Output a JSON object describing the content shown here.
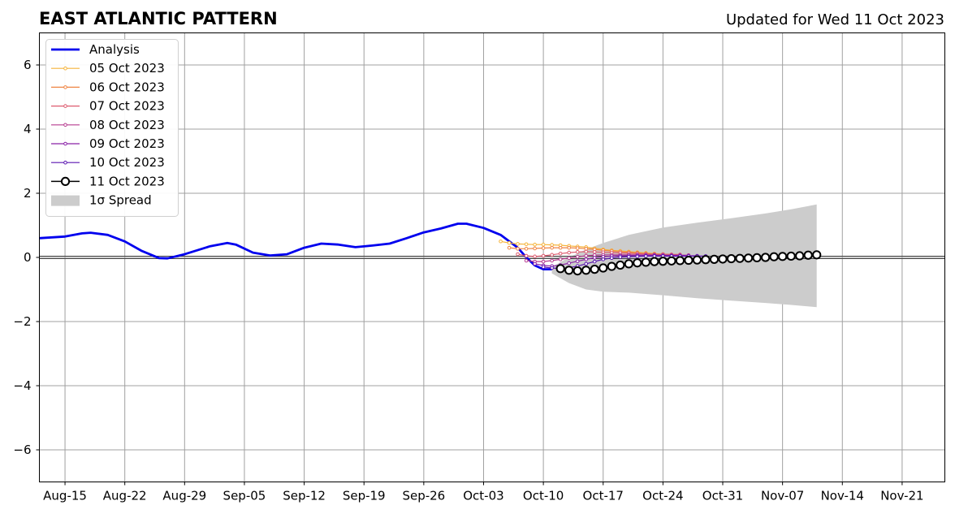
{
  "chart_data": {
    "type": "line",
    "title": "EAST ATLANTIC PATTERN",
    "subtitle": "Updated for Wed 11 Oct 2023",
    "xlabel": "",
    "ylabel": "",
    "x_axis": {
      "type": "date",
      "start": "2023-08-12",
      "end": "2023-11-26",
      "ticks": [
        "Aug-15",
        "Aug-22",
        "Aug-29",
        "Sep-05",
        "Sep-12",
        "Sep-19",
        "Sep-26",
        "Oct-03",
        "Oct-10",
        "Oct-17",
        "Oct-24",
        "Oct-31",
        "Nov-07",
        "Nov-14",
        "Nov-21"
      ],
      "tick_dates": [
        "2023-08-15",
        "2023-08-22",
        "2023-08-29",
        "2023-09-05",
        "2023-09-12",
        "2023-09-19",
        "2023-09-26",
        "2023-10-03",
        "2023-10-10",
        "2023-10-17",
        "2023-10-24",
        "2023-10-31",
        "2023-11-07",
        "2023-11-14",
        "2023-11-21"
      ]
    },
    "ylim": [
      -7,
      7
    ],
    "yticks": [
      -6,
      -4,
      -2,
      0,
      2,
      4,
      6
    ],
    "grid": true,
    "legend_position": "top-left",
    "analysis": {
      "name": "Analysis",
      "color": "#0000ee",
      "points": [
        [
          "2023-08-12",
          0.6
        ],
        [
          "2023-08-15",
          0.65
        ],
        [
          "2023-08-17",
          0.75
        ],
        [
          "2023-08-18",
          0.77
        ],
        [
          "2023-08-20",
          0.7
        ],
        [
          "2023-08-22",
          0.5
        ],
        [
          "2023-08-24",
          0.2
        ],
        [
          "2023-08-26",
          -0.02
        ],
        [
          "2023-08-27",
          -0.03
        ],
        [
          "2023-08-29",
          0.1
        ],
        [
          "2023-09-01",
          0.35
        ],
        [
          "2023-09-03",
          0.45
        ],
        [
          "2023-09-04",
          0.4
        ],
        [
          "2023-09-06",
          0.15
        ],
        [
          "2023-09-08",
          0.06
        ],
        [
          "2023-09-10",
          0.1
        ],
        [
          "2023-09-12",
          0.3
        ],
        [
          "2023-09-14",
          0.43
        ],
        [
          "2023-09-16",
          0.4
        ],
        [
          "2023-09-18",
          0.32
        ],
        [
          "2023-09-20",
          0.37
        ],
        [
          "2023-09-22",
          0.43
        ],
        [
          "2023-09-24",
          0.6
        ],
        [
          "2023-09-26",
          0.78
        ],
        [
          "2023-09-28",
          0.9
        ],
        [
          "2023-09-30",
          1.05
        ],
        [
          "2023-10-01",
          1.05
        ],
        [
          "2023-10-03",
          0.92
        ],
        [
          "2023-10-05",
          0.7
        ],
        [
          "2023-10-07",
          0.3
        ],
        [
          "2023-10-08",
          0.0
        ],
        [
          "2023-10-09",
          -0.25
        ],
        [
          "2023-10-10",
          -0.37
        ],
        [
          "2023-10-11",
          -0.37
        ]
      ]
    },
    "forecasts": [
      {
        "name": "05 Oct 2023",
        "color": "#f5b33a",
        "start": "2023-10-05",
        "values": [
          0.5,
          0.45,
          0.42,
          0.41,
          0.4,
          0.4,
          0.39,
          0.38,
          0.36,
          0.34,
          0.32,
          0.28,
          0.25,
          0.22,
          0.2,
          0.18,
          0.16,
          0.14,
          0.12,
          0.1
        ]
      },
      {
        "name": "06 Oct 2023",
        "color": "#ef8443",
        "start": "2023-10-06",
        "values": [
          0.3,
          0.27,
          0.27,
          0.28,
          0.29,
          0.3,
          0.3,
          0.3,
          0.29,
          0.27,
          0.25,
          0.22,
          0.2,
          0.18,
          0.16,
          0.14,
          0.12,
          0.1,
          0.1,
          0.09
        ]
      },
      {
        "name": "07 Oct 2023",
        "color": "#dd5a6e",
        "start": "2023-10-07",
        "values": [
          0.1,
          0.05,
          0.03,
          0.05,
          0.08,
          0.12,
          0.15,
          0.17,
          0.18,
          0.17,
          0.16,
          0.15,
          0.14,
          0.13,
          0.12,
          0.11,
          0.1,
          0.1,
          0.09,
          0.09
        ]
      },
      {
        "name": "08 Oct 2023",
        "color": "#b63c8f",
        "start": "2023-10-08",
        "values": [
          -0.1,
          -0.13,
          -0.13,
          -0.1,
          -0.06,
          -0.02,
          0.02,
          0.05,
          0.07,
          0.08,
          0.08,
          0.08,
          0.08,
          0.08,
          0.08,
          0.08,
          0.07,
          0.07,
          0.07,
          0.07
        ]
      },
      {
        "name": "09 Oct 2023",
        "color": "#8a22a8",
        "start": "2023-10-09",
        "values": [
          -0.2,
          -0.25,
          -0.27,
          -0.24,
          -0.18,
          -0.12,
          -0.06,
          -0.01,
          0.02,
          0.04,
          0.05,
          0.06,
          0.06,
          0.06,
          0.06,
          0.06,
          0.06,
          0.06,
          0.05,
          0.05
        ]
      },
      {
        "name": "10 Oct 2023",
        "color": "#5a15b0",
        "start": "2023-10-10",
        "values": [
          -0.3,
          -0.33,
          -0.35,
          -0.32,
          -0.27,
          -0.2,
          -0.13,
          -0.06,
          -0.02,
          0.01,
          0.02,
          0.03,
          0.04,
          0.04,
          0.04,
          0.04,
          0.04,
          0.04,
          0.04,
          0.04
        ]
      },
      {
        "name": "11 Oct 2023",
        "color": "#000000",
        "start": "2023-10-12",
        "values": [
          -0.35,
          -0.4,
          -0.42,
          -0.4,
          -0.37,
          -0.33,
          -0.28,
          -0.24,
          -0.2,
          -0.17,
          -0.15,
          -0.13,
          -0.12,
          -0.11,
          -0.1,
          -0.09,
          -0.08,
          -0.07,
          -0.06,
          -0.05,
          -0.04,
          -0.03,
          -0.02,
          -0.01,
          0.0,
          0.02,
          0.03,
          0.04,
          0.05,
          0.07,
          0.08
        ]
      }
    ],
    "spread": {
      "name": "1σ Spread",
      "color": "#cccccc",
      "points": [
        [
          "2023-10-11",
          -0.5,
          -0.3
        ],
        [
          "2023-10-13",
          -0.8,
          0.0
        ],
        [
          "2023-10-15",
          -1.0,
          0.25
        ],
        [
          "2023-10-17",
          -1.07,
          0.45
        ],
        [
          "2023-10-20",
          -1.1,
          0.7
        ],
        [
          "2023-10-24",
          -1.18,
          0.93
        ],
        [
          "2023-10-28",
          -1.27,
          1.08
        ],
        [
          "2023-11-01",
          -1.35,
          1.22
        ],
        [
          "2023-11-05",
          -1.42,
          1.37
        ],
        [
          "2023-11-08",
          -1.48,
          1.5
        ],
        [
          "2023-11-11",
          -1.55,
          1.65
        ]
      ]
    }
  }
}
